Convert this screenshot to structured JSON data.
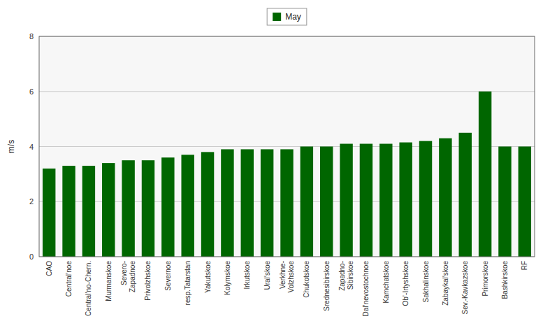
{
  "chart_data": {
    "type": "bar",
    "categories": [
      "CAO",
      "Central’noe",
      "Central’no-Chern.",
      "Murmanskoe",
      "Severo-\nZapadnoe",
      "Privolzhskoe",
      "Severnoe",
      "resp.Tatarstan",
      "Yakutskoe",
      "Kolymskoe",
      "Irkutskoe",
      "Ural’skoe",
      "Verkhne-\nVolzhskoe",
      "Chukotskoe",
      "Srednesibirskoe",
      "Zapadno-\nSibirskoe",
      "Dal’nevostochnoe",
      "Kamchatskoe",
      "Ob’-Irtyshskoe",
      "Sakhalinskoe",
      "Zabaykal’skoe",
      "Sev.-Kavkazskoe",
      "Primorskoe",
      "Bashkirskoe",
      "RF"
    ],
    "series": [
      {
        "name": "May",
        "color": "#006600",
        "values": [
          3.2,
          3.3,
          3.3,
          3.4,
          3.5,
          3.5,
          3.6,
          3.7,
          3.8,
          3.9,
          3.9,
          3.9,
          3.9,
          4.0,
          4.0,
          4.1,
          4.1,
          4.1,
          4.15,
          4.2,
          4.3,
          4.5,
          6.0,
          4.0,
          4.0
        ]
      }
    ],
    "ylabel": "m/s",
    "ylim": [
      0,
      8
    ],
    "yticks": [
      0,
      2,
      4,
      6,
      8
    ],
    "grid": true,
    "legend": "top"
  }
}
